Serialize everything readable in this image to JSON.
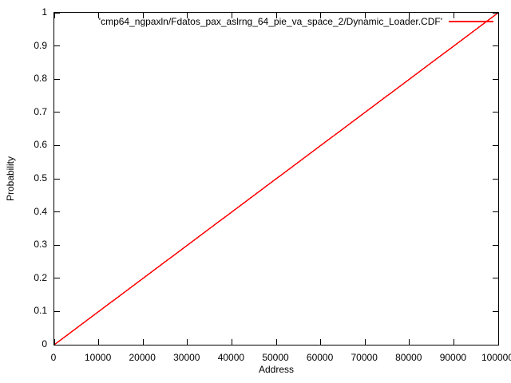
{
  "figure": {
    "background": "#ffffff",
    "border_color": "#000000",
    "text_color": "#000000"
  },
  "chart_data": {
    "type": "line",
    "title": "",
    "xlabel": "Address",
    "ylabel": "Probability",
    "xlim": [
      0,
      100000
    ],
    "ylim": [
      0,
      1
    ],
    "x_ticks": [
      0,
      10000,
      20000,
      30000,
      40000,
      50000,
      60000,
      70000,
      80000,
      90000,
      100000
    ],
    "x_tick_labels": [
      "0",
      "10000",
      "20000",
      "30000",
      "40000",
      "50000",
      "60000",
      "70000",
      "80000",
      "90000",
      "100000"
    ],
    "y_ticks": [
      0,
      0.1,
      0.2,
      0.3,
      0.4,
      0.5,
      0.6,
      0.7,
      0.8,
      0.9,
      1
    ],
    "y_tick_labels": [
      "0",
      "0.1",
      "0.2",
      "0.3",
      "0.4",
      "0.5",
      "0.6",
      "0.7",
      "0.8",
      "0.9",
      "1"
    ],
    "grid": false,
    "tick_style": "inward-all-borders",
    "legend": {
      "position": "top-right-inside",
      "entries": [
        {
          "label": "'cmp64_ngpaxln/Fdatos_pax_aslrng_64_pie_va_space_2/Dynamic_Loader.CDF'",
          "color": "#ff0000"
        }
      ]
    },
    "series": [
      {
        "name": "'cmp64_ngpaxln/Fdatos_pax_aslrng_64_pie_va_space_2/Dynamic_Loader.CDF'",
        "color": "#ff0000",
        "shape": "linear-cdf",
        "points": [
          [
            0,
            0
          ],
          [
            100000,
            1
          ]
        ]
      }
    ]
  }
}
